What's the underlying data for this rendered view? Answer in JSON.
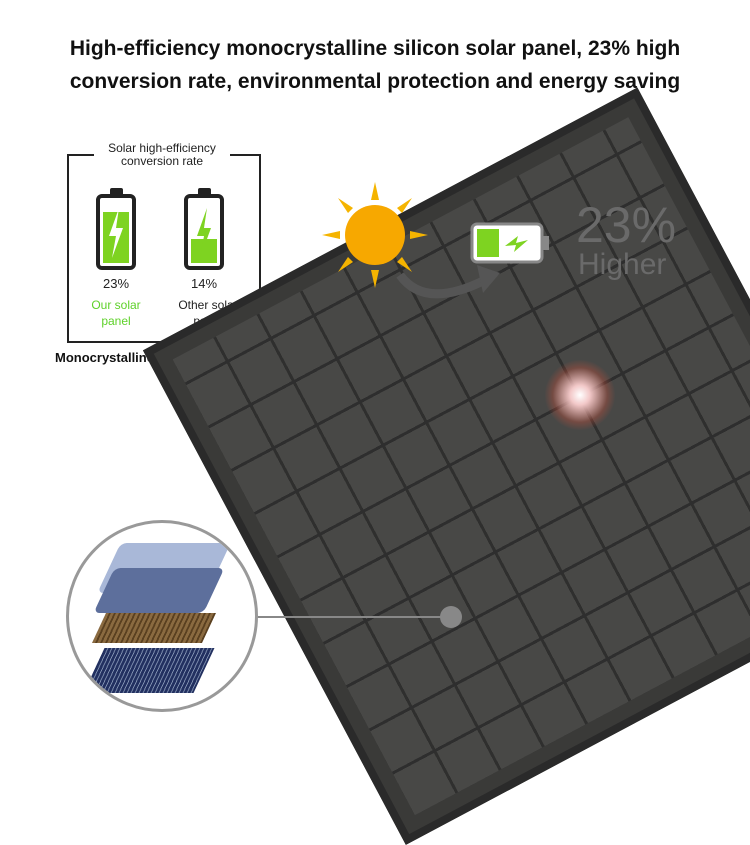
{
  "headline": {
    "line1": "High-efficiency monocrystalline silicon solar panel, 23% high",
    "line2": "conversion rate, environmental protection and energy saving"
  },
  "comparison": {
    "title": "Solar high-efficiency conversion rate",
    "ours": {
      "percent": "23%",
      "label": "Our solar panel",
      "fill_level": 0.75
    },
    "other": {
      "percent": "14%",
      "label": "Other solar panel",
      "fill_level": 0.35
    },
    "caption": "Monocrystalline silicon solar panel",
    "accent_color": "#7ed321"
  },
  "highlight": {
    "value": "23%",
    "label": "Higher"
  },
  "icons": [
    "sun-icon",
    "battery-charging-icon",
    "curved-arrow-icon"
  ]
}
